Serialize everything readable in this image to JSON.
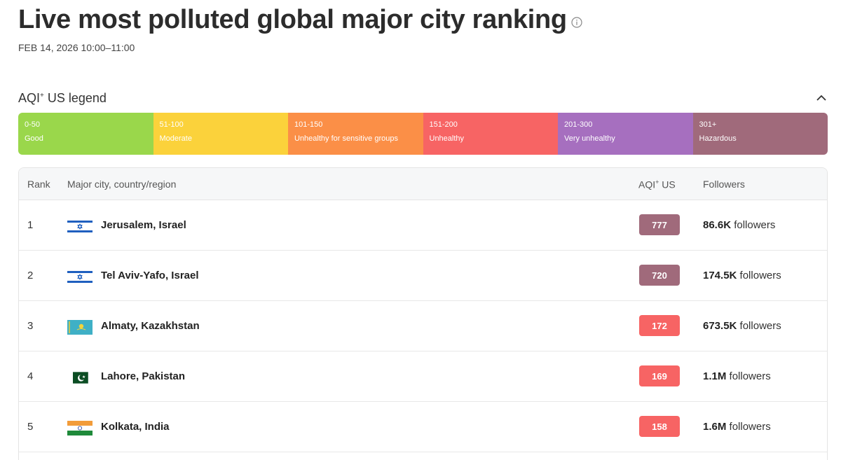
{
  "header": {
    "title": "Live most polluted global major city ranking",
    "date": "FEB 14, 2026 10:00–11:00"
  },
  "legend": {
    "title": "AQI",
    "title_sup": "+",
    "title_suffix": "US legend",
    "segments": [
      {
        "range": "0-50",
        "label": "Good",
        "color": "#9ad74b"
      },
      {
        "range": "51-100",
        "label": "Moderate",
        "color": "#fbd23b"
      },
      {
        "range": "101-150",
        "label": "Unhealthy for sensitive groups",
        "color": "#fb8f47"
      },
      {
        "range": "151-200",
        "label": "Unhealthy",
        "color": "#f76464"
      },
      {
        "range": "201-300",
        "label": "Very unhealthy",
        "color": "#a66fbf"
      },
      {
        "range": "301+",
        "label": "Hazardous",
        "color": "#a06a7b"
      }
    ]
  },
  "table": {
    "headers": {
      "rank": "Rank",
      "city": "Major city, country/region",
      "aqi": "AQI",
      "aqi_sup": "+",
      "aqi_suffix": "US",
      "followers": "Followers"
    },
    "rows": [
      {
        "rank": "1",
        "flag": "israel-flag-icon",
        "city": "Jerusalem, Israel",
        "aqi": "777",
        "aqi_color": "#a06a7b",
        "followers_count": "86.6K",
        "followers_label": "followers"
      },
      {
        "rank": "2",
        "flag": "israel-flag-icon",
        "city": "Tel Aviv-Yafo, Israel",
        "aqi": "720",
        "aqi_color": "#a06a7b",
        "followers_count": "174.5K",
        "followers_label": "followers"
      },
      {
        "rank": "3",
        "flag": "kazakhstan-flag-icon",
        "city": "Almaty, Kazakhstan",
        "aqi": "172",
        "aqi_color": "#f76464",
        "followers_count": "673.5K",
        "followers_label": "followers"
      },
      {
        "rank": "4",
        "flag": "pakistan-flag-icon",
        "city": "Lahore, Pakistan",
        "aqi": "169",
        "aqi_color": "#f76464",
        "followers_count": "1.1M",
        "followers_label": "followers"
      },
      {
        "rank": "5",
        "flag": "india-flag-icon",
        "city": "Kolkata, India",
        "aqi": "158",
        "aqi_color": "#f76464",
        "followers_count": "1.6M",
        "followers_label": "followers"
      }
    ]
  }
}
